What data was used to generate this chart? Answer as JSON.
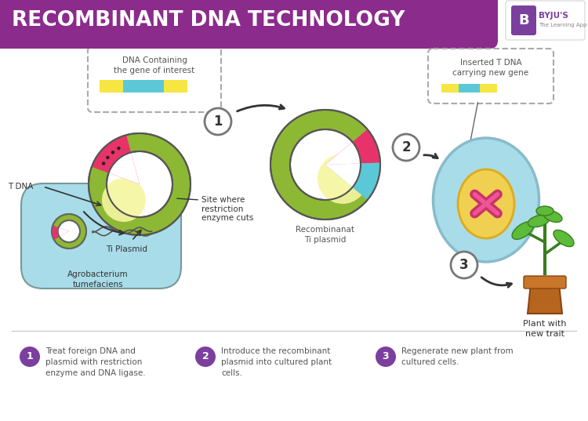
{
  "title": "RECOMBINANT DNA TECHNOLOGY",
  "title_bg": "#8B2B8B",
  "title_color": "#FFFFFF",
  "bg_color": "#FFFFFF",
  "purple": "#7B3F9E",
  "olive": "#8DB834",
  "cyan_light": "#A8DCE8",
  "pink": "#E8336A",
  "yellow_glow": "#F5F5A0",
  "yellow_seg": "#F5E642",
  "cyan_seg": "#5BC8D8",
  "step1_text": "Treat foreign DNA and\nplasmid with restriction\nenzyme and DNA ligase.",
  "step2_text": "Introduce the recombinant\nplasmid into cultured plant\ncells.",
  "step3_text": "Regenerate new plant from\ncultured cells.",
  "label_tdna": "T DNA",
  "label_tiplasmid": "Ti Plasmid",
  "label_site": "Site where\nrestriction\nenzyme cuts",
  "label_agro": "Agrobacterium\ntumefaciens",
  "label_dna_box": "DNA Containing\nthe gene of interest",
  "label_recomb": "Recombinanat\nTi plasmid",
  "label_inserted": "Inserted T DNA\ncarrying new gene",
  "label_plant": "Plant with\nnew trait",
  "footer_line_color": "#CCCCCC",
  "text_color": "#555555"
}
